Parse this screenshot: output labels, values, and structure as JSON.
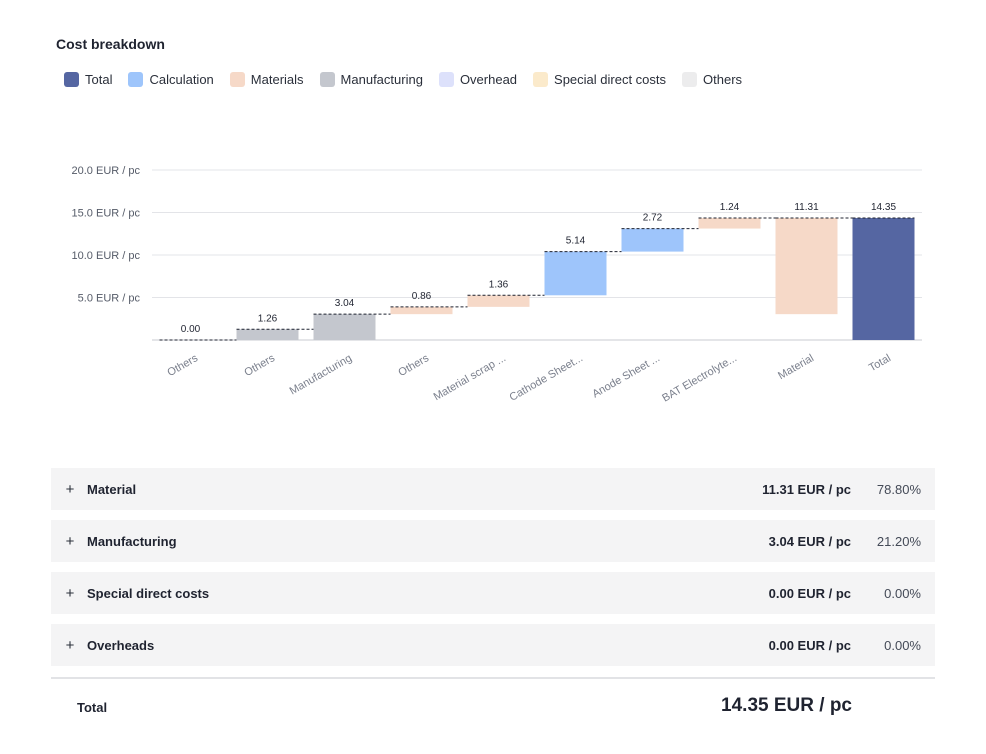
{
  "header": {
    "title": "Cost breakdown"
  },
  "legend": [
    {
      "label": "Total",
      "color": "#5566a2"
    },
    {
      "label": "Calculation",
      "color": "#9ec5fb"
    },
    {
      "label": "Materials",
      "color": "#f6d9c8"
    },
    {
      "label": "Manufacturing",
      "color": "#c4c7ce"
    },
    {
      "label": "Overhead",
      "color": "#dde1fb"
    },
    {
      "label": "Special direct costs",
      "color": "#fbeacb"
    },
    {
      "label": "Others",
      "color": "#ececed"
    }
  ],
  "chart_data": {
    "type": "bar",
    "subtype": "waterfall",
    "y_tick_labels": [
      "20.0 EUR / pc",
      "15.0 EUR / pc",
      "10.0 EUR / pc",
      "5.0 EUR / pc"
    ],
    "y_ticks": [
      20,
      15,
      10,
      5
    ],
    "ylim": [
      0,
      20
    ],
    "grid": true,
    "categories": [
      "Others",
      "Others",
      "Manufacturing",
      "Others",
      "Material scrap ...",
      "Cathode Sheet...",
      "Anode Sheet ...",
      "BAT Electrolyte...",
      "Material",
      "Total"
    ],
    "value_labels": [
      "0.00",
      "1.26",
      "3.04",
      "0.86",
      "1.36",
      "5.14",
      "2.72",
      "1.24",
      "11.31",
      "14.35"
    ],
    "bars": [
      {
        "low": 0,
        "high": 0,
        "color": "#ececed"
      },
      {
        "low": 0,
        "high": 1.26,
        "color": "#c4c7ce"
      },
      {
        "low": 0,
        "high": 3.04,
        "color": "#c4c7ce"
      },
      {
        "low": 3.04,
        "high": 3.9,
        "color": "#f6d9c8"
      },
      {
        "low": 3.9,
        "high": 5.26,
        "color": "#f6d9c8"
      },
      {
        "low": 5.26,
        "high": 10.4,
        "color": "#9ec5fb"
      },
      {
        "low": 10.4,
        "high": 13.11,
        "color": "#9ec5fb"
      },
      {
        "low": 13.11,
        "high": 14.35,
        "color": "#f6d9c8"
      },
      {
        "low": 3.04,
        "high": 14.35,
        "color": "#f6d9c8"
      },
      {
        "low": 0,
        "high": 14.35,
        "color": "#5566a2"
      }
    ]
  },
  "breakdown": [
    {
      "label": "Material",
      "amount": "11.31 EUR / pc",
      "percent": "78.80%"
    },
    {
      "label": "Manufacturing",
      "amount": "3.04 EUR / pc",
      "percent": "21.20%"
    },
    {
      "label": "Special direct costs",
      "amount": "0.00 EUR / pc",
      "percent": "0.00%"
    },
    {
      "label": "Overheads",
      "amount": "0.00 EUR / pc",
      "percent": "0.00%"
    }
  ],
  "expand_symbol": "+",
  "total": {
    "label": "Total",
    "value": "14.35 EUR / pc"
  }
}
